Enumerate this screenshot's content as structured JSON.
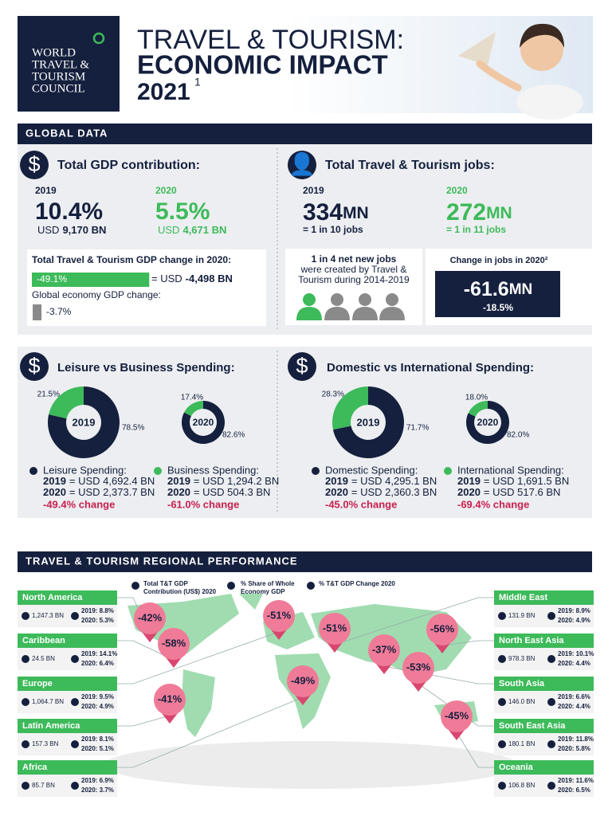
{
  "header": {
    "logo_lines": [
      "WORLD",
      "TRAVEL &",
      "TOURISM",
      "COUNCIL"
    ],
    "title_line1": "TRAVEL & TOURISM:",
    "title_line2": "ECONOMIC IMPACT",
    "year": "2021",
    "footnote": "1"
  },
  "global_data": {
    "heading": "GLOBAL DATA",
    "gdp": {
      "title": "Total GDP contribution:",
      "years": [
        {
          "year": "2019",
          "value": "10.4%",
          "currency": "USD",
          "amount": "9,170 BN"
        },
        {
          "year": "2020",
          "value": "5.5%",
          "currency": "USD",
          "amount": "4,671 BN"
        }
      ],
      "change_title": "Total Travel & Tourism GDP change in 2020:",
      "tt_change": {
        "value": -49.1,
        "label": "-49.1%"
      },
      "tt_change_usd": [
        "= USD",
        "-4,498 BN"
      ],
      "global_title": "Global economy GDP change:",
      "global_change": {
        "value": -3.7,
        "label": "-3.7%"
      }
    },
    "jobs": {
      "title": "Total Travel & Tourism jobs:",
      "years": [
        {
          "year": "2019",
          "value": "334",
          "unit": "MN",
          "share": "= 1 in 10 jobs"
        },
        {
          "year": "2020",
          "value": "272",
          "unit": "MN",
          "share": "= 1 in 11 jobs"
        }
      ],
      "net_new": [
        "1 in 4 net new jobs",
        "were created by Travel &",
        "Tourism during 2014-2019"
      ],
      "change_title": "Change in jobs in 2020²",
      "change_value": "-61.6",
      "change_unit": "MN",
      "change_pct": "-18.5%"
    }
  },
  "spending": [
    {
      "title": "Leisure vs Business Spending:",
      "donuts": [
        {
          "year": "2019",
          "segments": [
            {
              "value": 21.5,
              "label": "21.5%",
              "color": "#3dba5a"
            },
            {
              "value": 78.5,
              "label": "78.5%",
              "color": "#15203e"
            }
          ]
        },
        {
          "year": "2020",
          "segments": [
            {
              "value": 17.4,
              "label": "17.4%",
              "color": "#3dba5a"
            },
            {
              "value": 82.6,
              "label": "82.6%",
              "color": "#15203e"
            }
          ]
        }
      ],
      "legend": [
        {
          "name": "Leisure Spending:",
          "color": "#15203e",
          "lines": [
            {
              "year": "2019",
              "amount": "= USD 4,692.4 BN"
            },
            {
              "year": "2020",
              "amount": "= USD 2,373.7 BN"
            }
          ],
          "change": "-49.4% change"
        },
        {
          "name": "Business Spending:",
          "color": "#3dba5a",
          "lines": [
            {
              "year": "2019",
              "amount": "= USD 1,294.2 BN"
            },
            {
              "year": "2020",
              "amount": "= USD 504.3 BN"
            }
          ],
          "change": "-61.0% change"
        }
      ]
    },
    {
      "title": "Domestic vs International Spending:",
      "donuts": [
        {
          "year": "2019",
          "segments": [
            {
              "value": 28.3,
              "label": "28.3%",
              "color": "#3dba5a"
            },
            {
              "value": 71.7,
              "label": "71.7%",
              "color": "#15203e"
            }
          ]
        },
        {
          "year": "2020",
          "segments": [
            {
              "value": 18.0,
              "label": "18.0%",
              "color": "#3dba5a"
            },
            {
              "value": 82.0,
              "label": "82.0%",
              "color": "#15203e"
            }
          ]
        }
      ],
      "legend": [
        {
          "name": "Domestic Spending:",
          "color": "#15203e",
          "lines": [
            {
              "year": "2019",
              "amount": "= USD 4,295.1 BN"
            },
            {
              "year": "2020",
              "amount": "= USD 2,360.3 BN"
            }
          ],
          "change": "-45.0% change"
        },
        {
          "name": "International Spending:",
          "color": "#3dba5a",
          "lines": [
            {
              "year": "2019",
              "amount": "= USD 1,691.5 BN"
            },
            {
              "year": "2020",
              "amount": "= USD 517.6 BN"
            }
          ],
          "change": "-69.4% change"
        }
      ]
    }
  ],
  "regional": {
    "heading": "TRAVEL & TOURISM REGIONAL PERFORMANCE",
    "legend": [
      [
        "Total T&T GDP",
        "Contribution (US$) 2020"
      ],
      [
        "% Share of Whole",
        "Economy GDP"
      ],
      [
        "% T&T GDP Change 2020"
      ]
    ],
    "regions": [
      {
        "name": "North America",
        "gdp": "1,247.3 BN",
        "share_2019": "2019: 8.8%",
        "share_2020": "2020: 5.3%",
        "change": "-42%"
      },
      {
        "name": "Caribbean",
        "gdp": "24.5 BN",
        "share_2019": "2019: 14.1%",
        "share_2020": "2020: 6.4%",
        "change": "-58%"
      },
      {
        "name": "Europe",
        "gdp": "1,064.7 BN",
        "share_2019": "2019: 9.5%",
        "share_2020": "2020: 4.9%",
        "change": "-51%"
      },
      {
        "name": "Latin America",
        "gdp": "157.3 BN",
        "share_2019": "2019: 8.1%",
        "share_2020": "2020: 5.1%",
        "change": "-41%"
      },
      {
        "name": "Africa",
        "gdp": "85.7 BN",
        "share_2019": "2019: 6.9%",
        "share_2020": "2020: 3.7%",
        "change": "-49%"
      },
      {
        "name": "Middle East",
        "gdp": "131.9 BN",
        "share_2019": "2019: 8.9%",
        "share_2020": "2020: 4.9%",
        "change": "-51%"
      },
      {
        "name": "North East Asia",
        "gdp": "978.3 BN",
        "share_2019": "2019: 10.1%",
        "share_2020": "2020: 4.4%",
        "change": "-56%"
      },
      {
        "name": "South Asia",
        "gdp": "146.0 BN",
        "share_2019": "2019: 6.6%",
        "share_2020": "2020: 4.4%",
        "change": "-37%"
      },
      {
        "name": "South East Asia",
        "gdp": "180.1 BN",
        "share_2019": "2019: 11.8%",
        "share_2020": "2020: 5.8%",
        "change": "-53%"
      },
      {
        "name": "Oceania",
        "gdp": "106.8 BN",
        "share_2019": "2019: 11.6%",
        "share_2020": "2020: 6.5%",
        "change": "-45%"
      }
    ]
  }
}
